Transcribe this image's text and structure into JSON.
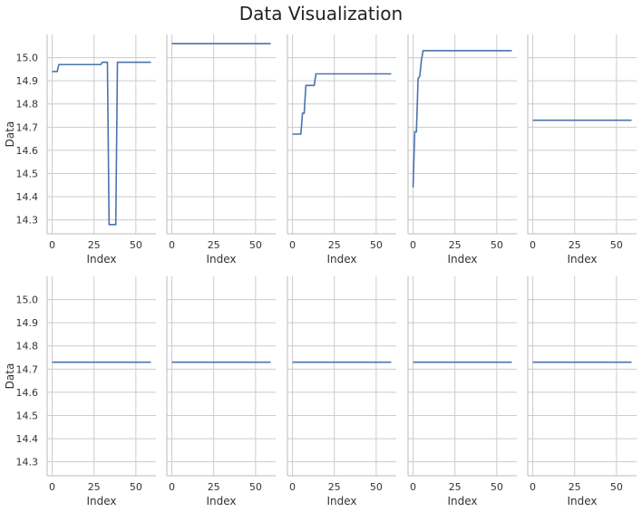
{
  "figure": {
    "title": "Data Visualization"
  },
  "colors": {
    "line": "#4c72b0",
    "grid": "#cccccc",
    "spine": "#bbbbbb"
  },
  "chart_data": {
    "type": "line",
    "layout": "small-multiples-2x5",
    "title": "Data Visualization",
    "xlabel": "Index",
    "ylabel": "Data",
    "xlim": [
      -3,
      62
    ],
    "ylim": [
      14.24,
      15.1
    ],
    "xticks": [
      0,
      25,
      50
    ],
    "yticks": [
      14.3,
      14.4,
      14.5,
      14.6,
      14.7,
      14.8,
      14.9,
      15.0
    ],
    "ytick_labels": [
      "14.3",
      "14.4",
      "14.5",
      "14.6",
      "14.7",
      "14.8",
      "14.9",
      "15.0"
    ],
    "grid": true,
    "sharey": true,
    "panels": [
      {
        "x": [
          0,
          3,
          4,
          29,
          30,
          33,
          34,
          38,
          39,
          59
        ],
        "y": [
          14.94,
          14.94,
          14.97,
          14.97,
          14.98,
          14.98,
          14.28,
          14.28,
          14.98,
          14.98
        ]
      },
      {
        "x": [
          0,
          59
        ],
        "y": [
          15.06,
          15.06
        ]
      },
      {
        "x": [
          0,
          5,
          6,
          7,
          8,
          9,
          13,
          14,
          59
        ],
        "y": [
          14.67,
          14.67,
          14.76,
          14.76,
          14.88,
          14.88,
          14.88,
          14.93,
          14.93
        ]
      },
      {
        "x": [
          0,
          1,
          2,
          3,
          4,
          5,
          6,
          59
        ],
        "y": [
          14.44,
          14.68,
          14.68,
          14.91,
          14.92,
          14.99,
          15.03,
          15.03
        ]
      },
      {
        "x": [
          0,
          59
        ],
        "y": [
          14.73,
          14.73
        ]
      },
      {
        "x": [
          0,
          59
        ],
        "y": [
          14.73,
          14.73
        ]
      },
      {
        "x": [
          0,
          59
        ],
        "y": [
          14.73,
          14.73
        ]
      },
      {
        "x": [
          0,
          59
        ],
        "y": [
          14.73,
          14.73
        ]
      },
      {
        "x": [
          0,
          59
        ],
        "y": [
          14.73,
          14.73
        ]
      },
      {
        "x": [
          0,
          59
        ],
        "y": [
          14.73,
          14.73
        ]
      }
    ]
  }
}
